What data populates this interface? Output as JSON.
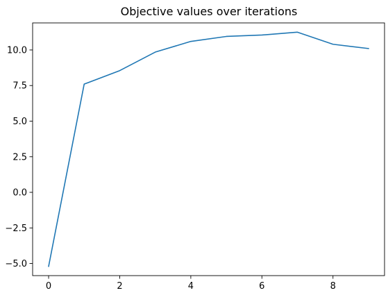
{
  "chart_data": {
    "type": "line",
    "title": "Objective values over iterations",
    "xlabel": "",
    "ylabel": "",
    "x": [
      0,
      1,
      2,
      3,
      4,
      5,
      6,
      7,
      8,
      9
    ],
    "series": [
      {
        "values": [
          -5.2,
          7.6,
          8.55,
          9.85,
          10.6,
          10.95,
          11.05,
          11.25,
          10.4,
          10.1
        ]
      }
    ],
    "xlim": [
      -0.45,
      9.45
    ],
    "ylim": [
      -5.85,
      11.9
    ],
    "x_ticks": [
      0,
      2,
      4,
      6,
      8
    ],
    "x_tick_labels": [
      "0",
      "2",
      "4",
      "6",
      "8"
    ],
    "y_ticks": [
      -5.0,
      -2.5,
      0.0,
      2.5,
      5.0,
      7.5,
      10.0
    ],
    "y_tick_labels": [
      "−5.0",
      "−2.5",
      "0.0",
      "2.5",
      "5.0",
      "7.5",
      "10.0"
    ],
    "grid": false,
    "line_color": "#1f77b4"
  }
}
